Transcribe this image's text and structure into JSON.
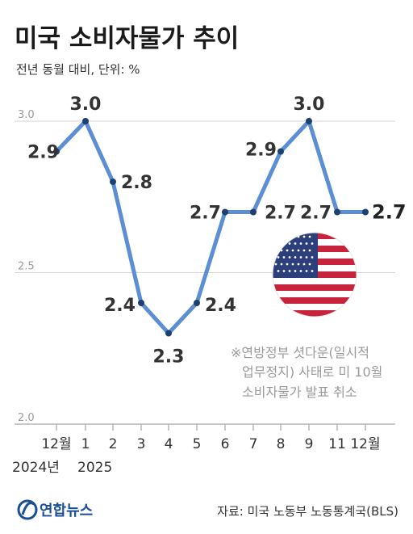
{
  "colors": {
    "line": "#5b8ed2",
    "marker": "#1f3f6e",
    "grid": "#d6d6d6",
    "axis": "#b5b5b5",
    "logo": "#1a4f96",
    "flag_red": "#c8233c",
    "flag_blue": "#2c3e7c"
  },
  "header": {
    "title": "미국 소비자물가 추이",
    "subtitle": "전년 동월 대비, 단위: %"
  },
  "note": {
    "lines": [
      "※연방정부 셧다운(일시적",
      "업무정지) 사태로 미 10월",
      "소비자물가 발표 취소"
    ]
  },
  "footer": {
    "logo": "연합뉴스",
    "logo_icon": "yonhap-logo-icon",
    "source": "자료: 미국 노동부 노동통계국(BLS)"
  },
  "flag_icon": "us-flag-icon",
  "chart_data": {
    "type": "line",
    "title": "미국 소비자물가 추이",
    "subtitle": "전년 동월 대비, 단위: %",
    "categories": [
      "12월",
      "1",
      "2",
      "3",
      "4",
      "5",
      "6",
      "7",
      "8",
      "9",
      "11",
      "12월"
    ],
    "year_labels": [
      "2024년",
      "2025"
    ],
    "values": [
      2.9,
      3.0,
      2.8,
      2.4,
      2.3,
      2.4,
      2.7,
      2.7,
      2.9,
      3.0,
      2.7,
      2.7
    ],
    "value_labels": [
      "2.9",
      "3.0",
      "2.8",
      "2.4",
      "2.3",
      "2.4",
      "2.7",
      "2.7",
      "2.9",
      "3.0",
      "2.7",
      "2.7"
    ],
    "ylim": [
      2.0,
      3.0
    ],
    "yticks": [
      "3.0",
      "2.5",
      "2.0"
    ],
    "ytick_values": [
      3.0,
      2.5,
      2.0
    ],
    "grid": true,
    "legend": "none"
  }
}
